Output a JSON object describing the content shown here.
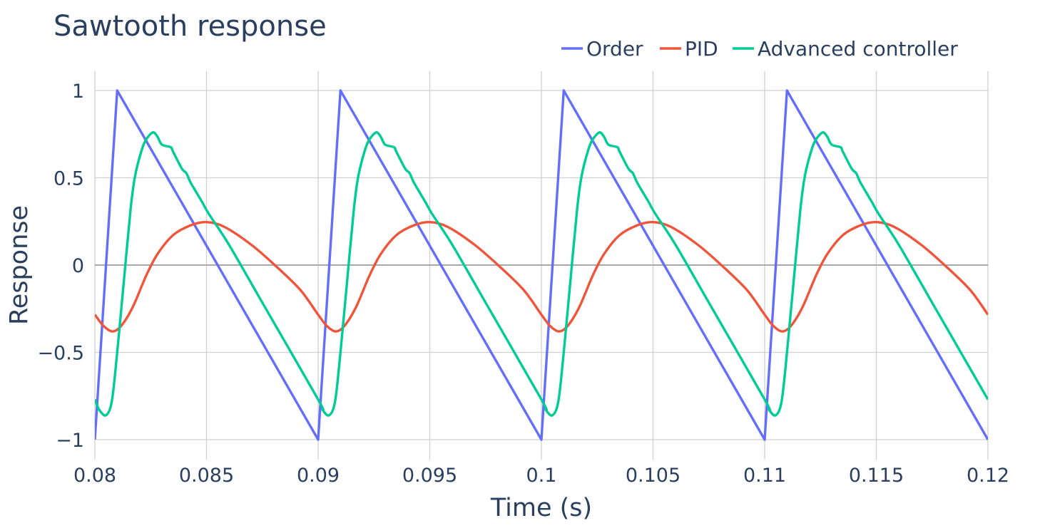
{
  "chart_data": {
    "type": "line",
    "title": "Sawtooth response",
    "xlabel": "Time (s)",
    "ylabel": "Response",
    "xlim": [
      0.08,
      0.12
    ],
    "ylim": [
      -1.05,
      1.05
    ],
    "grid": true,
    "legend_placement": "top-right",
    "x_ticks": [
      0.08,
      0.085,
      0.09,
      0.095,
      0.1,
      0.105,
      0.11,
      0.115,
      0.12
    ],
    "x_tick_labels": [
      "0.08",
      "0.085",
      "0.09",
      "0.095",
      "0.1",
      "0.105",
      "0.11",
      "0.115",
      "0.12"
    ],
    "y_ticks": [
      1,
      0.5,
      0,
      -0.5,
      -1
    ],
    "y_tick_labels": [
      "1",
      "0.5",
      "0",
      "−0.5",
      "−1"
    ],
    "series": [
      {
        "name": "Order",
        "color": "#636efa",
        "points": [
          [
            0.08,
            -1
          ],
          [
            0.081,
            1
          ],
          [
            0.09,
            -1
          ],
          [
            0.091,
            1
          ],
          [
            0.1,
            -1
          ],
          [
            0.101,
            1
          ],
          [
            0.11,
            -1
          ],
          [
            0.111,
            1
          ],
          [
            0.12,
            -1
          ]
        ]
      },
      {
        "name": "PID",
        "color": "#ef553b",
        "points": [
          [
            0.08,
            -0.284
          ],
          [
            0.0804,
            -0.35
          ],
          [
            0.0808,
            -0.38
          ],
          [
            0.0812,
            -0.345
          ],
          [
            0.0817,
            -0.24
          ],
          [
            0.0823,
            -0.06
          ],
          [
            0.0828,
            0.062
          ],
          [
            0.0835,
            0.171
          ],
          [
            0.0843,
            0.228
          ],
          [
            0.085,
            0.246
          ],
          [
            0.0858,
            0.219
          ],
          [
            0.087,
            0.117
          ],
          [
            0.0881,
            -0.005
          ],
          [
            0.0892,
            -0.142
          ],
          [
            0.09,
            -0.284
          ],
          [
            0.0904,
            -0.35
          ],
          [
            0.0908,
            -0.38
          ],
          [
            0.0912,
            -0.345
          ],
          [
            0.0917,
            -0.24
          ],
          [
            0.0923,
            -0.06
          ],
          [
            0.0928,
            0.062
          ],
          [
            0.0935,
            0.171
          ],
          [
            0.0943,
            0.228
          ],
          [
            0.095,
            0.246
          ],
          [
            0.0958,
            0.219
          ],
          [
            0.097,
            0.117
          ],
          [
            0.0981,
            -0.005
          ],
          [
            0.0992,
            -0.142
          ],
          [
            0.1,
            -0.284
          ],
          [
            0.1004,
            -0.35
          ],
          [
            0.1008,
            -0.38
          ],
          [
            0.1012,
            -0.345
          ],
          [
            0.1017,
            -0.24
          ],
          [
            0.1023,
            -0.06
          ],
          [
            0.1028,
            0.062
          ],
          [
            0.1035,
            0.171
          ],
          [
            0.1043,
            0.228
          ],
          [
            0.105,
            0.246
          ],
          [
            0.1058,
            0.219
          ],
          [
            0.107,
            0.117
          ],
          [
            0.1081,
            -0.005
          ],
          [
            0.1092,
            -0.142
          ],
          [
            0.11,
            -0.284
          ],
          [
            0.1104,
            -0.35
          ],
          [
            0.1108,
            -0.38
          ],
          [
            0.1112,
            -0.345
          ],
          [
            0.1117,
            -0.24
          ],
          [
            0.1123,
            -0.06
          ],
          [
            0.1128,
            0.062
          ],
          [
            0.1135,
            0.171
          ],
          [
            0.1143,
            0.228
          ],
          [
            0.115,
            0.246
          ],
          [
            0.1158,
            0.219
          ],
          [
            0.117,
            0.117
          ],
          [
            0.1181,
            -0.005
          ],
          [
            0.1192,
            -0.142
          ],
          [
            0.12,
            -0.284
          ]
        ]
      },
      {
        "name": "Advanced controller",
        "color": "#00cc96",
        "points": [
          [
            0.08,
            -0.77
          ],
          [
            0.0802,
            -0.83
          ],
          [
            0.0805,
            -0.86
          ],
          [
            0.08076,
            -0.78
          ],
          [
            0.081,
            -0.5
          ],
          [
            0.0813,
            -0.09
          ],
          [
            0.0816,
            0.32
          ],
          [
            0.0818,
            0.51
          ],
          [
            0.0821,
            0.66
          ],
          [
            0.0823,
            0.72
          ],
          [
            0.0826,
            0.76
          ],
          [
            0.0828,
            0.736
          ],
          [
            0.083,
            0.69
          ],
          [
            0.0834,
            0.675
          ],
          [
            0.0835,
            0.65
          ],
          [
            0.0839,
            0.552
          ],
          [
            0.0841,
            0.526
          ],
          [
            0.0843,
            0.47
          ],
          [
            0.0848,
            0.362
          ],
          [
            0.0851,
            0.294
          ],
          [
            0.086,
            0.118
          ],
          [
            0.0875,
            -0.215
          ],
          [
            0.09,
            -0.77
          ],
          [
            0.0902,
            -0.83
          ],
          [
            0.0905,
            -0.86
          ],
          [
            0.09076,
            -0.78
          ],
          [
            0.091,
            -0.5
          ],
          [
            0.0913,
            -0.09
          ],
          [
            0.0916,
            0.32
          ],
          [
            0.0918,
            0.51
          ],
          [
            0.0921,
            0.66
          ],
          [
            0.0923,
            0.72
          ],
          [
            0.0926,
            0.76
          ],
          [
            0.0928,
            0.736
          ],
          [
            0.093,
            0.69
          ],
          [
            0.0934,
            0.675
          ],
          [
            0.0935,
            0.65
          ],
          [
            0.0939,
            0.552
          ],
          [
            0.0941,
            0.526
          ],
          [
            0.0943,
            0.47
          ],
          [
            0.0948,
            0.362
          ],
          [
            0.0951,
            0.294
          ],
          [
            0.096,
            0.118
          ],
          [
            0.0975,
            -0.215
          ],
          [
            0.1,
            -0.77
          ],
          [
            0.1002,
            -0.83
          ],
          [
            0.1005,
            -0.86
          ],
          [
            0.10076,
            -0.78
          ],
          [
            0.101,
            -0.5
          ],
          [
            0.1013,
            -0.09
          ],
          [
            0.1016,
            0.32
          ],
          [
            0.1018,
            0.51
          ],
          [
            0.1021,
            0.66
          ],
          [
            0.1023,
            0.72
          ],
          [
            0.1026,
            0.76
          ],
          [
            0.1028,
            0.736
          ],
          [
            0.103,
            0.69
          ],
          [
            0.1034,
            0.675
          ],
          [
            0.1035,
            0.65
          ],
          [
            0.1039,
            0.552
          ],
          [
            0.1041,
            0.526
          ],
          [
            0.1043,
            0.47
          ],
          [
            0.1048,
            0.362
          ],
          [
            0.1051,
            0.294
          ],
          [
            0.106,
            0.118
          ],
          [
            0.1075,
            -0.215
          ],
          [
            0.11,
            -0.77
          ],
          [
            0.1102,
            -0.83
          ],
          [
            0.1105,
            -0.86
          ],
          [
            0.11076,
            -0.78
          ],
          [
            0.111,
            -0.5
          ],
          [
            0.1113,
            -0.09
          ],
          [
            0.1116,
            0.32
          ],
          [
            0.1118,
            0.51
          ],
          [
            0.1121,
            0.66
          ],
          [
            0.1123,
            0.72
          ],
          [
            0.1126,
            0.76
          ],
          [
            0.1128,
            0.736
          ],
          [
            0.113,
            0.69
          ],
          [
            0.1134,
            0.675
          ],
          [
            0.1135,
            0.65
          ],
          [
            0.1139,
            0.552
          ],
          [
            0.1141,
            0.526
          ],
          [
            0.1143,
            0.47
          ],
          [
            0.1148,
            0.362
          ],
          [
            0.1151,
            0.294
          ],
          [
            0.116,
            0.118
          ],
          [
            0.1175,
            -0.215
          ],
          [
            0.12,
            -0.77
          ]
        ]
      }
    ]
  }
}
